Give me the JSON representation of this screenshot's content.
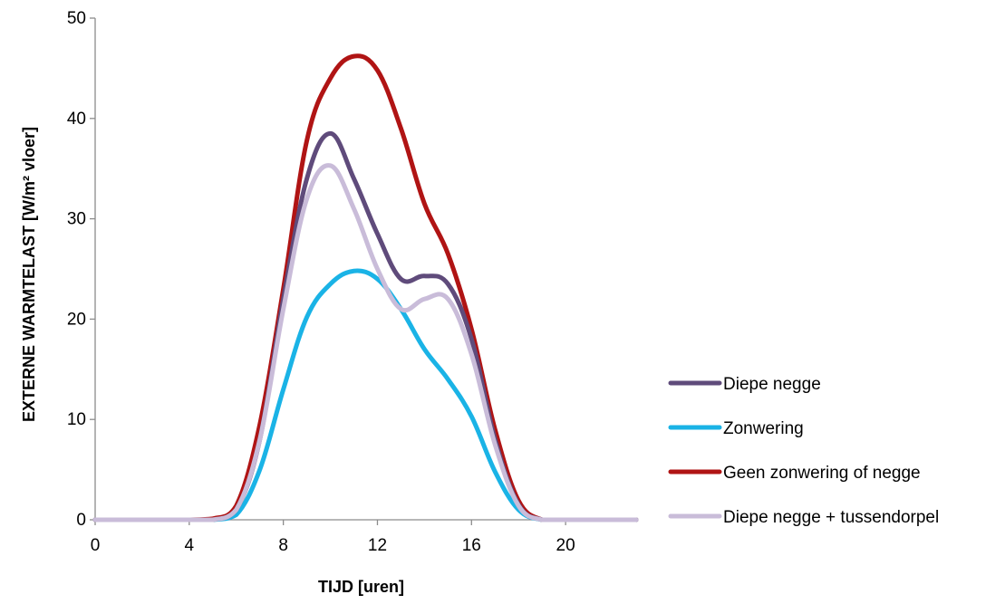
{
  "chart_data": {
    "type": "line",
    "xlabel": "TIJD [uren]",
    "ylabel": "EXTERNE WARMTELAST [W/m² vloer]",
    "xlim": [
      0,
      23
    ],
    "ylim": [
      0,
      50
    ],
    "xticks": [
      "0",
      "4",
      "8",
      "12",
      "16",
      "20"
    ],
    "yticks": [
      "0",
      "10",
      "20",
      "30",
      "40",
      "50"
    ],
    "grid": false,
    "legend_position": "right",
    "x": [
      0,
      1,
      2,
      3,
      4,
      5,
      6,
      7,
      8,
      9,
      10,
      11,
      12,
      13,
      14,
      15,
      16,
      17,
      18,
      19,
      20,
      21,
      22,
      23
    ],
    "series": [
      {
        "name": "Diepe negge",
        "color": "#5f4b7b",
        "values": [
          0,
          0,
          0,
          0,
          0,
          0,
          1,
          8,
          22,
          34,
          38.5,
          34,
          28.5,
          24,
          24.3,
          23.5,
          18,
          8,
          1.5,
          0,
          0,
          0,
          0,
          0
        ]
      },
      {
        "name": "Zonwering",
        "color": "#1ab3e6",
        "values": [
          0,
          0,
          0,
          0,
          0,
          0,
          0.5,
          5,
          13,
          20.2,
          23.5,
          24.8,
          24,
          21,
          17,
          14,
          10.3,
          4.8,
          1,
          0,
          0,
          0,
          0,
          0
        ]
      },
      {
        "name": "Geen zonwering of negge",
        "color": "#b01414",
        "values": [
          0,
          0,
          0,
          0,
          0,
          0.1,
          1.4,
          9.5,
          23,
          37.8,
          44,
          46.2,
          44.8,
          39,
          31.5,
          26.5,
          19,
          9,
          1.9,
          0,
          0,
          0,
          0,
          0
        ]
      },
      {
        "name": "Diepe negge + tussendorpel",
        "color": "#c9bcd9",
        "values": [
          0,
          0,
          0,
          0,
          0,
          0,
          1,
          8,
          21,
          32,
          35.3,
          31,
          25,
          21,
          22,
          22,
          16.5,
          7.5,
          1.4,
          0,
          0,
          0,
          0,
          0
        ]
      }
    ]
  }
}
